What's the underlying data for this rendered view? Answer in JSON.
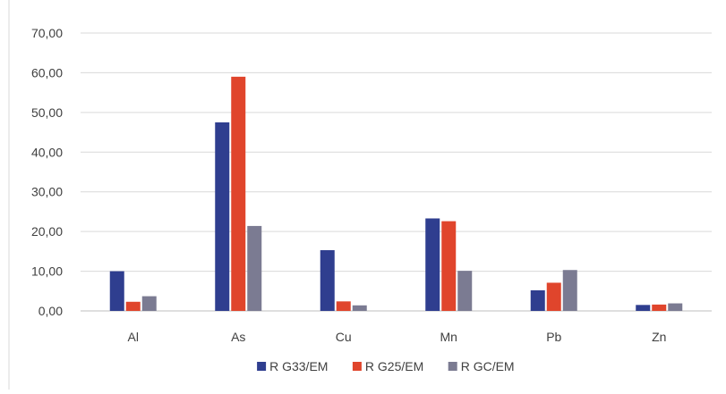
{
  "chart_data": {
    "type": "bar",
    "title": "",
    "xlabel": "",
    "ylabel": "",
    "categories": [
      "Al",
      "As",
      "Cu",
      "Mn",
      "Pb",
      "Zn"
    ],
    "ylim": [
      0,
      70
    ],
    "yticks": [
      "0,00",
      "10,00",
      "20,00",
      "30,00",
      "40,00",
      "50,00",
      "60,00",
      "70,00"
    ],
    "grid": true,
    "legend_position": "bottom",
    "series": [
      {
        "name": "R G33/EM",
        "color": "#2f3e8f",
        "values": [
          10.0,
          47.5,
          15.3,
          23.3,
          5.2,
          1.5
        ]
      },
      {
        "name": "R G25/EM",
        "color": "#e0452c",
        "values": [
          2.3,
          59.0,
          2.4,
          22.6,
          7.1,
          1.6
        ]
      },
      {
        "name": "R GC/EM",
        "color": "#7b7b92",
        "values": [
          3.7,
          21.4,
          1.4,
          10.1,
          10.3,
          1.9
        ]
      }
    ]
  }
}
